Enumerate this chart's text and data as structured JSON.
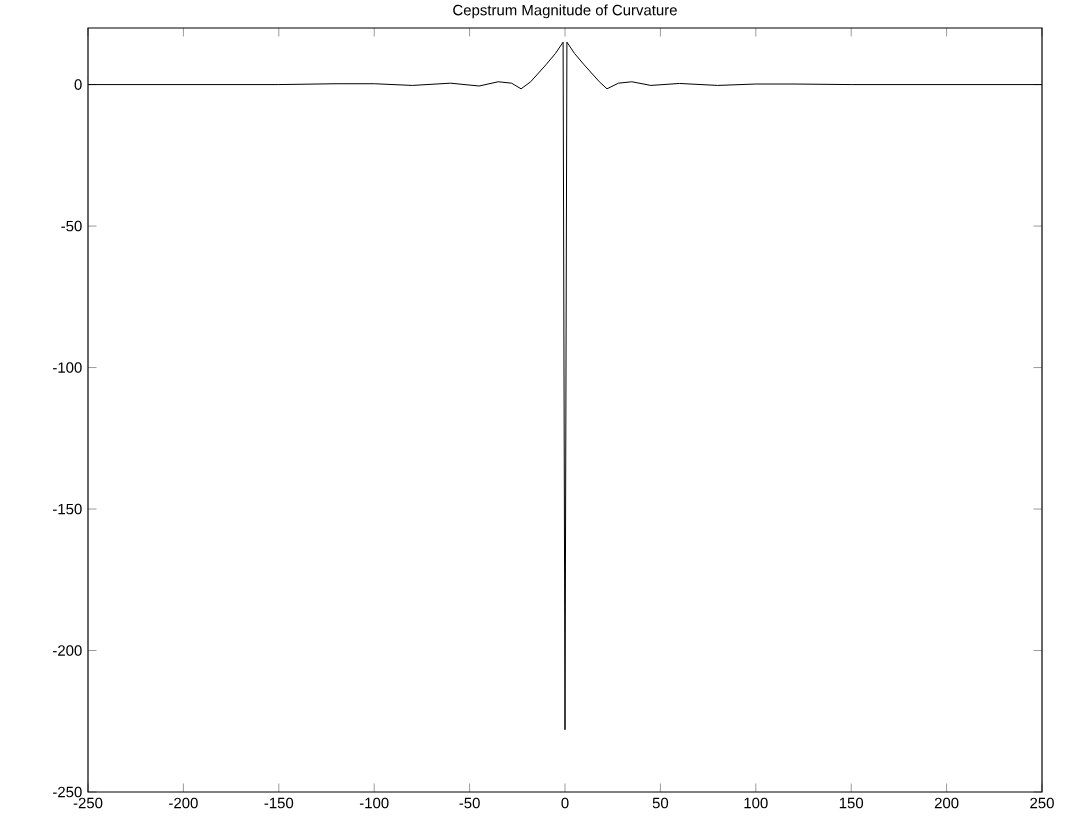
{
  "chart_data": {
    "type": "line",
    "title": "Cepstrum Magnitude of Curvature",
    "series": [
      {
        "color": "#000000",
        "x": [
          -250,
          -200,
          -150,
          -120,
          -100,
          -80,
          -60,
          -45,
          -35,
          -28,
          -23,
          -18,
          -10,
          -5,
          -2,
          -1,
          0,
          1,
          2,
          5,
          10,
          18,
          22,
          28,
          35,
          45,
          60,
          80,
          100,
          120,
          150,
          200,
          250
        ],
        "values": [
          0,
          0,
          0,
          0.3,
          0.3,
          -0.3,
          0.5,
          -0.5,
          1,
          0.5,
          -1.5,
          1,
          7,
          11,
          14,
          15,
          -228,
          15,
          14,
          11,
          7,
          1,
          -1.5,
          0.5,
          1,
          -0.3,
          0.4,
          -0.3,
          0.2,
          0.2,
          0,
          0,
          0
        ]
      }
    ],
    "xlim": [
      -250,
      250
    ],
    "ylim": [
      -250,
      20
    ],
    "xticks": [
      -250,
      -200,
      -150,
      -100,
      -50,
      0,
      50,
      100,
      150,
      200,
      250
    ],
    "yticks": [
      -250,
      -200,
      -150,
      -100,
      -50,
      0
    ],
    "grid": false
  }
}
